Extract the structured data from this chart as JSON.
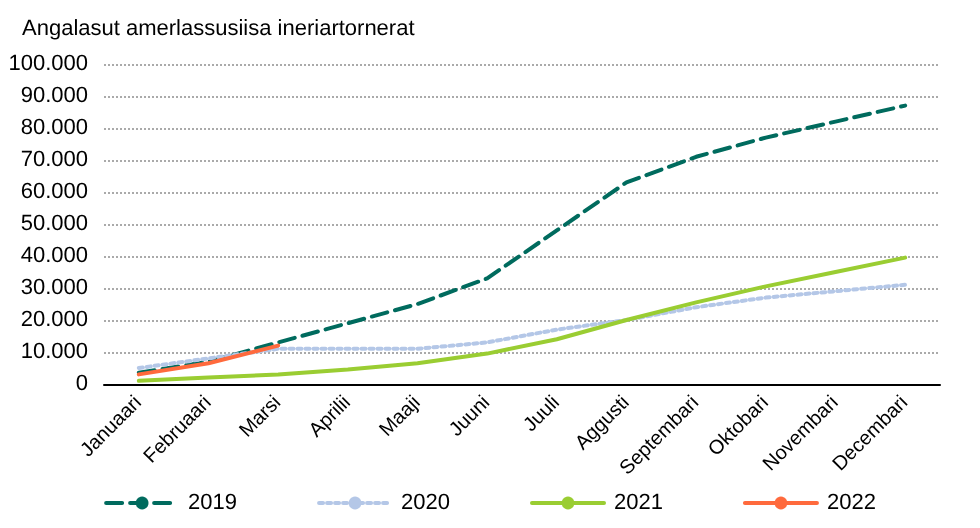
{
  "chart_data": {
    "type": "line",
    "title": "Angalasut amerlassusiisa ineriartornerat",
    "categories": [
      "Januaari",
      "Februaari",
      "Marsi",
      "Aprilii",
      "Maaji",
      "Juuni",
      "Juuli",
      "Aggusti",
      "Septembari",
      "Oktobari",
      "Novembari",
      "Decembari"
    ],
    "series": [
      {
        "name": "2019",
        "color": "#006b5e",
        "line_style": "dashed",
        "values": [
          3500,
          7000,
          13000,
          19000,
          25000,
          33000,
          48000,
          63000,
          71000,
          77000,
          82000,
          87000
        ]
      },
      {
        "name": "2020",
        "color": "#b4c7e7",
        "line_style": "dotted",
        "values": [
          5000,
          8000,
          11000,
          11000,
          11000,
          13000,
          17000,
          20000,
          24000,
          27000,
          29000,
          31000
        ]
      },
      {
        "name": "2021",
        "color": "#9acd32",
        "line_style": "solid",
        "values": [
          1000,
          2000,
          3000,
          4500,
          6500,
          9500,
          14000,
          20000,
          25500,
          30500,
          35000,
          39500
        ]
      },
      {
        "name": "2022",
        "color": "#ff6a3d",
        "line_style": "solid",
        "values": [
          3000,
          6500,
          12000,
          null,
          null,
          null,
          null,
          null,
          null,
          null,
          null,
          null
        ]
      }
    ],
    "ylim": [
      0,
      100000
    ],
    "yticks": [
      {
        "value": 0,
        "label": "0"
      },
      {
        "value": 10000,
        "label": "10.000"
      },
      {
        "value": 20000,
        "label": "20.000"
      },
      {
        "value": 30000,
        "label": "30.000"
      },
      {
        "value": 40000,
        "label": "40.000"
      },
      {
        "value": 50000,
        "label": "50.000"
      },
      {
        "value": 60000,
        "label": "60.000"
      },
      {
        "value": 70000,
        "label": "70.000"
      },
      {
        "value": 80000,
        "label": "80.000"
      },
      {
        "value": 90000,
        "label": "90.000"
      },
      {
        "value": 100000,
        "label": "100.000"
      }
    ],
    "grid": "y",
    "legend": "bottom",
    "marker": "none"
  }
}
